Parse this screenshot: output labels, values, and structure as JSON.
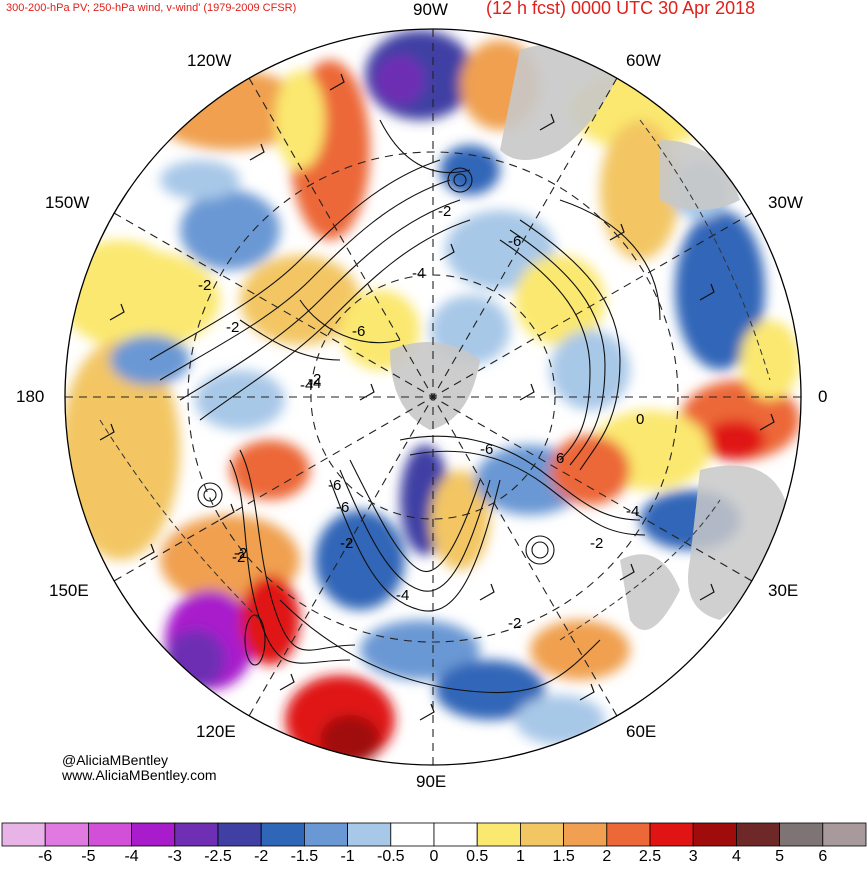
{
  "header": {
    "title_left": "300-200-hPa PV; 250-hPa wind, v-wind' (1979-2009 CFSR)",
    "title_right": "(12 h fcst) 0000 UTC 30 Apr 2018"
  },
  "credits": {
    "line1": "@AliciaMBentley",
    "line2": "www.AliciaMBentley.com"
  },
  "longitude_labels": {
    "n90w": "90W",
    "n120w": "120W",
    "n60w": "60W",
    "n150w": "150W",
    "n30w": "30W",
    "n180": "180",
    "n0": "0",
    "n150e": "150E",
    "n30e": "30E",
    "n120e": "120E",
    "n60e": "60E",
    "n90e": "90E"
  },
  "contour_labels": [
    "-2",
    "-2",
    "-4",
    "-6",
    "-2",
    "-2",
    "-4",
    "-6",
    "-6",
    "-6",
    "6",
    "-2",
    "-4",
    "-2",
    "-4",
    "-2",
    "-2",
    "-6",
    "-2",
    "-4",
    "0"
  ],
  "colorbar": {
    "ticks": [
      "-6",
      "-5",
      "-4",
      "-3",
      "-2.5",
      "-2",
      "-1.5",
      "-1",
      "-0.5",
      "0",
      "0.5",
      "1",
      "1.5",
      "2",
      "2.5",
      "3",
      "4",
      "5",
      "6"
    ],
    "colors": [
      "#e8b4e8",
      "#e07ae0",
      "#d24fd8",
      "#a81ccc",
      "#6e2fb4",
      "#3f3fa4",
      "#3066b8",
      "#6a98d4",
      "#a8c8e8",
      "#ffffff",
      "#ffffff",
      "#fbe870",
      "#f3c664",
      "#f0a050",
      "#ec6838",
      "#e01414",
      "#a00c0c",
      "#6e2828",
      "#7e7474",
      "#a89a9a"
    ]
  },
  "colors": {
    "title": "#e0201a",
    "land": "#c8c8c8"
  }
}
